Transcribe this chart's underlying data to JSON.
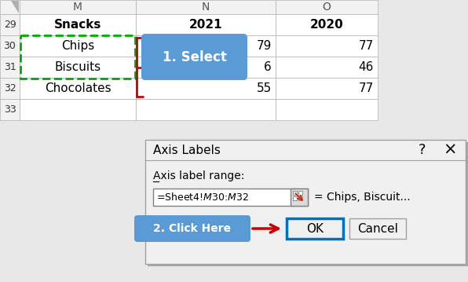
{
  "bg_color": "#e8e8e8",
  "excel_bg": "#ffffff",
  "grid_line_color": "#b0b0b0",
  "row_header_bg": "#f2f2f2",
  "col_header_bg": "#f2f2f2",
  "header_text_color": "#000000",
  "cell_text_color": "#000000",
  "row_nums": [
    "29",
    "30",
    "31",
    "32",
    "33"
  ],
  "col_M": [
    "Snacks",
    "Chips",
    "Biscuits",
    "Chocolates",
    ""
  ],
  "col_N": [
    "2021",
    "79",
    "6",
    "55",
    ""
  ],
  "col_O": [
    "2020",
    "77",
    "46",
    "77",
    ""
  ],
  "select_bubble_text": "1. Select",
  "select_bubble_color": "#5b9bd5",
  "select_bubble_text_color": "#ffffff",
  "dashed_rect_color": "#00aa00",
  "bracket_color": "#cc0000",
  "dialog_bg": "#f0f0f0",
  "dialog_border": "#a0a0a0",
  "dialog_title": "Axis Labels",
  "dialog_label": "Axis label range:",
  "dialog_input_text": "=Sheet4!$M$30:$M$32",
  "dialog_input_bg": "#ffffff",
  "dialog_preview": "= Chips, Biscuit...",
  "dialog_ok_text": "OK",
  "dialog_cancel_text": "Cancel",
  "click_here_text": "2. Click Here",
  "click_here_color": "#5b9bd5",
  "click_here_text_color": "#ffffff",
  "arrow_color": "#cc0000",
  "ok_border_color": "#0070c0"
}
